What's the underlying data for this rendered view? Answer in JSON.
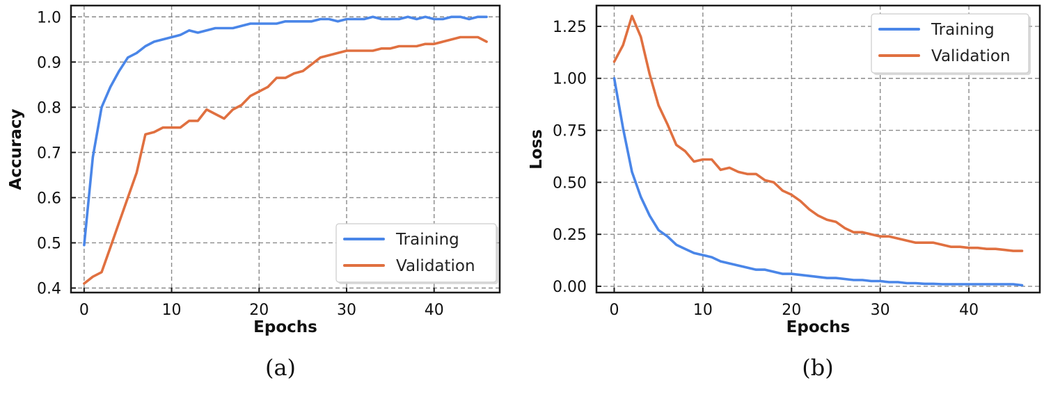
{
  "chart_data": [
    {
      "type": "line",
      "panel_label": "(a)",
      "xlabel": "Epochs",
      "ylabel": "Accuracy",
      "xlim": [
        -1.5,
        47.5
      ],
      "ylim": [
        0.39,
        1.025
      ],
      "xticks": [
        0,
        10,
        20,
        30,
        40
      ],
      "xtick_labels": [
        "0",
        "10",
        "20",
        "30",
        "40"
      ],
      "yticks": [
        0.4,
        0.5,
        0.6,
        0.7,
        0.8,
        0.9,
        1.0
      ],
      "ytick_labels": [
        "0.4",
        "0.5",
        "0.6",
        "0.7",
        "0.8",
        "0.9",
        "1.0"
      ],
      "grid": true,
      "legend_position": "lower-right",
      "series": [
        {
          "name": "Training",
          "color": "#4a86e8",
          "x": [
            0,
            1,
            2,
            3,
            4,
            5,
            6,
            7,
            8,
            9,
            10,
            11,
            12,
            13,
            14,
            15,
            16,
            17,
            18,
            19,
            20,
            21,
            22,
            23,
            24,
            25,
            26,
            27,
            28,
            29,
            30,
            31,
            32,
            33,
            34,
            35,
            36,
            37,
            38,
            39,
            40,
            41,
            42,
            43,
            44,
            45,
            46
          ],
          "y": [
            0.495,
            0.69,
            0.8,
            0.845,
            0.88,
            0.91,
            0.92,
            0.935,
            0.945,
            0.95,
            0.955,
            0.96,
            0.97,
            0.965,
            0.97,
            0.975,
            0.975,
            0.975,
            0.98,
            0.985,
            0.985,
            0.985,
            0.985,
            0.99,
            0.99,
            0.99,
            0.99,
            0.995,
            0.995,
            0.99,
            0.995,
            0.995,
            0.995,
            1.0,
            0.995,
            0.995,
            0.995,
            1.0,
            0.995,
            1.0,
            0.995,
            0.995,
            1.0,
            1.0,
            0.995,
            1.0,
            1.0
          ]
        },
        {
          "name": "Validation",
          "color": "#e07040",
          "x": [
            0,
            1,
            2,
            3,
            4,
            5,
            6,
            7,
            8,
            9,
            10,
            11,
            12,
            13,
            14,
            15,
            16,
            17,
            18,
            19,
            20,
            21,
            22,
            23,
            24,
            25,
            26,
            27,
            28,
            29,
            30,
            31,
            32,
            33,
            34,
            35,
            36,
            37,
            38,
            39,
            40,
            41,
            42,
            43,
            44,
            45,
            46
          ],
          "y": [
            0.41,
            0.425,
            0.435,
            0.49,
            0.545,
            0.6,
            0.655,
            0.74,
            0.745,
            0.755,
            0.755,
            0.755,
            0.77,
            0.77,
            0.795,
            0.785,
            0.775,
            0.795,
            0.805,
            0.825,
            0.835,
            0.845,
            0.865,
            0.865,
            0.875,
            0.88,
            0.895,
            0.91,
            0.915,
            0.92,
            0.925,
            0.925,
            0.925,
            0.925,
            0.93,
            0.93,
            0.935,
            0.935,
            0.935,
            0.94,
            0.94,
            0.945,
            0.95,
            0.955,
            0.955,
            0.955,
            0.945
          ]
        }
      ]
    },
    {
      "type": "line",
      "panel_label": "(b)",
      "xlabel": "Epochs",
      "ylabel": "Loss",
      "xlim": [
        -2,
        48
      ],
      "ylim": [
        -0.03,
        1.35
      ],
      "xticks": [
        0,
        10,
        20,
        30,
        40
      ],
      "xtick_labels": [
        "0",
        "10",
        "20",
        "30",
        "40"
      ],
      "yticks": [
        0.0,
        0.25,
        0.5,
        0.75,
        1.0,
        1.25
      ],
      "ytick_labels": [
        "0.00",
        "0.25",
        "0.50",
        "0.75",
        "1.00",
        "1.25"
      ],
      "grid": true,
      "legend_position": "top-right",
      "series": [
        {
          "name": "Training",
          "color": "#4a86e8",
          "x": [
            0,
            1,
            2,
            3,
            4,
            5,
            6,
            7,
            8,
            9,
            10,
            11,
            12,
            13,
            14,
            15,
            16,
            17,
            18,
            19,
            20,
            21,
            22,
            23,
            24,
            25,
            26,
            27,
            28,
            29,
            30,
            31,
            32,
            33,
            34,
            35,
            36,
            37,
            38,
            39,
            40,
            41,
            42,
            43,
            44,
            45,
            46
          ],
          "y": [
            1.0,
            0.76,
            0.55,
            0.43,
            0.34,
            0.27,
            0.24,
            0.2,
            0.18,
            0.16,
            0.15,
            0.14,
            0.12,
            0.11,
            0.1,
            0.09,
            0.08,
            0.08,
            0.07,
            0.06,
            0.06,
            0.055,
            0.05,
            0.045,
            0.04,
            0.04,
            0.035,
            0.03,
            0.03,
            0.025,
            0.025,
            0.02,
            0.02,
            0.015,
            0.015,
            0.012,
            0.012,
            0.01,
            0.01,
            0.01,
            0.01,
            0.01,
            0.01,
            0.01,
            0.01,
            0.01,
            0.005
          ]
        },
        {
          "name": "Validation",
          "color": "#e07040",
          "x": [
            0,
            1,
            2,
            3,
            4,
            5,
            6,
            7,
            8,
            9,
            10,
            11,
            12,
            13,
            14,
            15,
            16,
            17,
            18,
            19,
            20,
            21,
            22,
            23,
            24,
            25,
            26,
            27,
            28,
            29,
            30,
            31,
            32,
            33,
            34,
            35,
            36,
            37,
            38,
            39,
            40,
            41,
            42,
            43,
            44,
            45,
            46
          ],
          "y": [
            1.08,
            1.16,
            1.3,
            1.2,
            1.02,
            0.87,
            0.78,
            0.68,
            0.65,
            0.6,
            0.61,
            0.61,
            0.56,
            0.57,
            0.55,
            0.54,
            0.54,
            0.51,
            0.5,
            0.46,
            0.44,
            0.41,
            0.37,
            0.34,
            0.32,
            0.31,
            0.28,
            0.26,
            0.26,
            0.25,
            0.24,
            0.24,
            0.23,
            0.22,
            0.21,
            0.21,
            0.21,
            0.2,
            0.19,
            0.19,
            0.185,
            0.185,
            0.18,
            0.18,
            0.175,
            0.17,
            0.17
          ]
        }
      ]
    }
  ]
}
